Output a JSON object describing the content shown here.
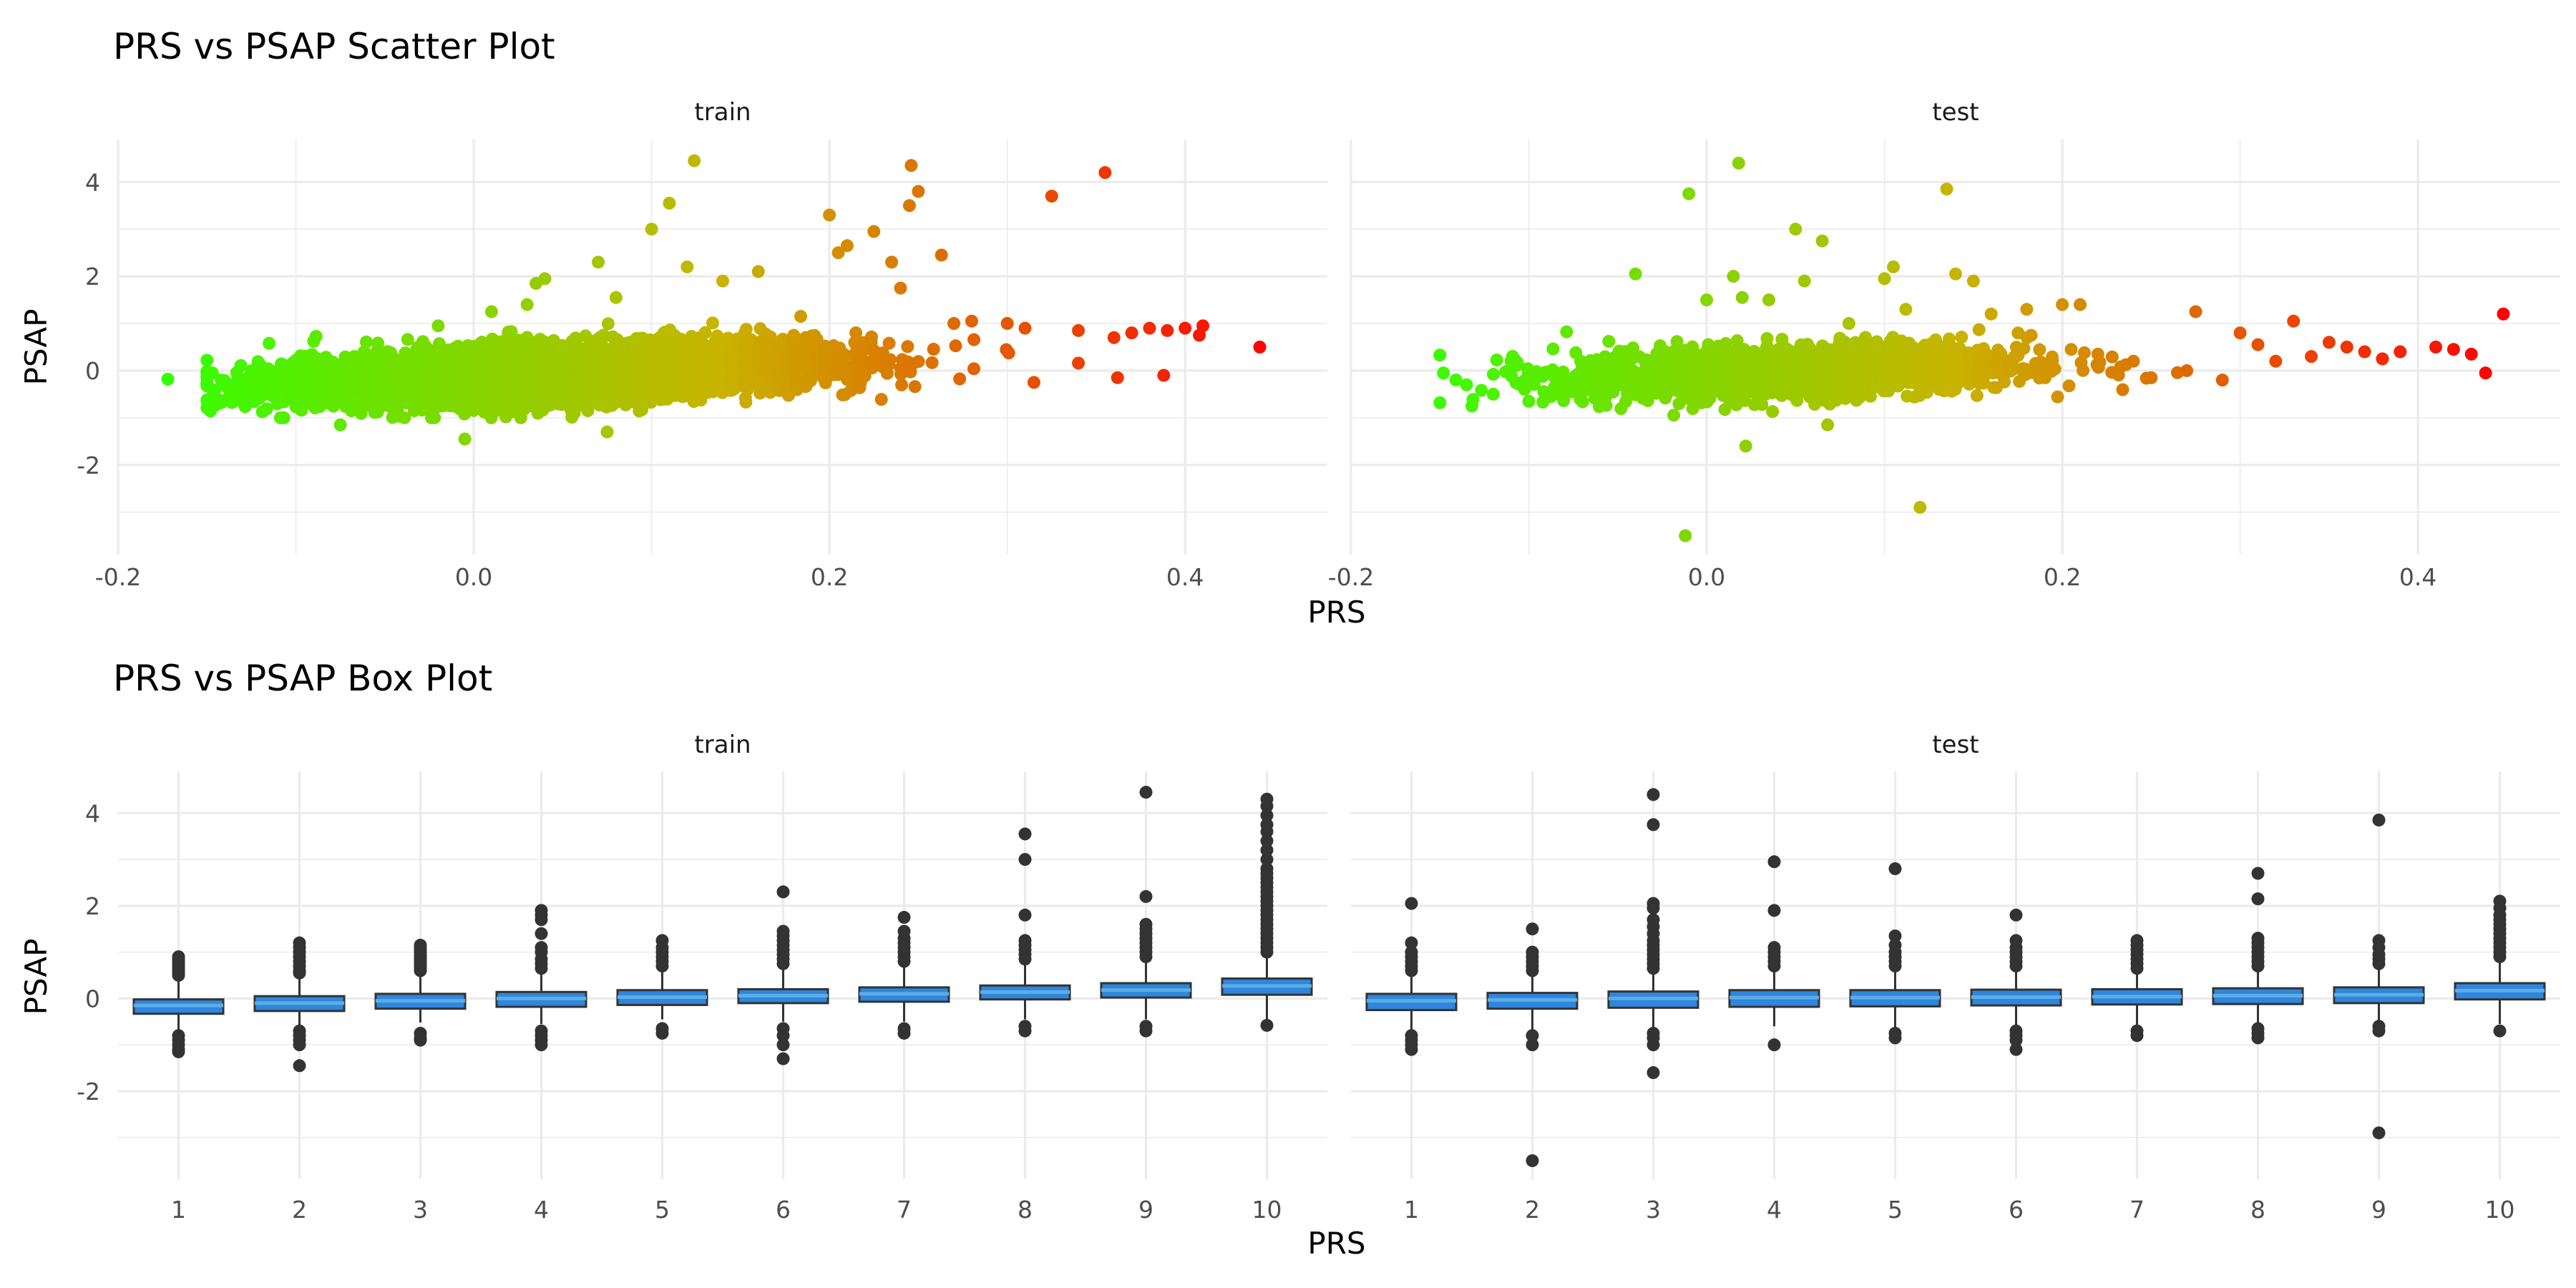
{
  "chart_data": [
    {
      "type": "scatter",
      "title": "PRS vs PSAP Scatter Plot",
      "xlabel": "PRS",
      "ylabel": "PSAP",
      "xlim": [
        -0.2,
        0.48
      ],
      "ylim": [
        -3.9,
        4.9
      ],
      "x_ticks": [
        -0.2,
        0.0,
        0.2,
        0.4
      ],
      "x_tick_labels": [
        "-0.2",
        "0.0",
        "0.2",
        "0.4"
      ],
      "y_ticks": [
        -2,
        0,
        2,
        4
      ],
      "y_tick_labels": [
        "-2",
        "0",
        "2",
        "4"
      ],
      "grid": true,
      "legend": "none",
      "color_scale": {
        "low": "#33ff00",
        "mid": "#c8b400",
        "high": "#ff0000",
        "domain": [
          -0.17,
          0.45
        ]
      },
      "panels": [
        {
          "name": "train",
          "bulk": {
            "count": 6000,
            "x_mean": 0.05,
            "x_sd": 0.07,
            "slope": 1.6,
            "intercept": -0.13,
            "y_sd": 0.28
          },
          "points": [
            [
              -0.172,
              -0.18
            ],
            [
              -0.147,
              -0.05
            ],
            [
              -0.142,
              -0.2
            ],
            [
              -0.135,
              -0.32
            ],
            [
              -0.125,
              0.0
            ],
            [
              -0.118,
              -0.45
            ],
            [
              -0.105,
              -0.6
            ],
            [
              -0.1,
              0.22
            ],
            [
              -0.09,
              0.62
            ],
            [
              -0.075,
              -1.15
            ],
            [
              -0.02,
              0.95
            ],
            [
              -0.005,
              -1.45
            ],
            [
              0.01,
              1.25
            ],
            [
              0.03,
              1.4
            ],
            [
              0.035,
              1.85
            ],
            [
              0.04,
              1.95
            ],
            [
              0.07,
              2.3
            ],
            [
              0.075,
              -1.3
            ],
            [
              0.08,
              1.55
            ],
            [
              0.1,
              3.0
            ],
            [
              0.11,
              3.55
            ],
            [
              0.12,
              2.2
            ],
            [
              0.124,
              4.45
            ],
            [
              0.14,
              1.9
            ],
            [
              0.16,
              2.1
            ],
            [
              0.2,
              3.3
            ],
            [
              0.205,
              2.5
            ],
            [
              0.21,
              2.65
            ],
            [
              0.225,
              2.95
            ],
            [
              0.235,
              2.3
            ],
            [
              0.24,
              1.75
            ],
            [
              0.245,
              3.5
            ],
            [
              0.246,
              4.35
            ],
            [
              0.25,
              3.8
            ],
            [
              0.263,
              2.45
            ],
            [
              0.27,
              1.0
            ],
            [
              0.28,
              1.05
            ],
            [
              0.3,
              1.0
            ],
            [
              0.31,
              0.9
            ],
            [
              0.325,
              3.7
            ],
            [
              0.34,
              0.85
            ],
            [
              0.355,
              4.2
            ],
            [
              0.36,
              0.7
            ],
            [
              0.37,
              0.8
            ],
            [
              0.38,
              0.9
            ],
            [
              0.39,
              0.85
            ],
            [
              0.4,
              0.9
            ],
            [
              0.41,
              0.95
            ],
            [
              0.388,
              -0.1
            ],
            [
              0.408,
              0.75
            ],
            [
              0.362,
              -0.15
            ],
            [
              0.315,
              -0.25
            ],
            [
              0.442,
              0.5
            ]
          ]
        },
        {
          "name": "test",
          "bulk": {
            "count": 1500,
            "x_mean": 0.05,
            "x_sd": 0.065,
            "slope": 1.2,
            "intercept": -0.08,
            "y_sd": 0.28
          },
          "points": [
            [
              -0.148,
              -0.05
            ],
            [
              -0.135,
              -0.3
            ],
            [
              -0.132,
              -0.75
            ],
            [
              -0.12,
              -0.5
            ],
            [
              -0.11,
              0.2
            ],
            [
              -0.1,
              -0.65
            ],
            [
              -0.055,
              0.62
            ],
            [
              -0.04,
              2.05
            ],
            [
              -0.01,
              3.75
            ],
            [
              -0.012,
              -3.5
            ],
            [
              0.0,
              1.5
            ],
            [
              0.015,
              2.0
            ],
            [
              0.018,
              4.4
            ],
            [
              0.02,
              1.55
            ],
            [
              0.022,
              -1.6
            ],
            [
              0.035,
              1.5
            ],
            [
              0.05,
              3.0
            ],
            [
              0.055,
              1.9
            ],
            [
              0.065,
              2.75
            ],
            [
              0.068,
              -1.15
            ],
            [
              0.08,
              1.0
            ],
            [
              0.1,
              1.95
            ],
            [
              0.105,
              2.2
            ],
            [
              0.112,
              1.3
            ],
            [
              0.12,
              -2.9
            ],
            [
              0.135,
              3.85
            ],
            [
              0.14,
              2.05
            ],
            [
              0.15,
              1.9
            ],
            [
              0.16,
              1.2
            ],
            [
              0.18,
              1.3
            ],
            [
              0.2,
              1.4
            ],
            [
              0.21,
              1.4
            ],
            [
              0.22,
              0.35
            ],
            [
              0.24,
              0.2
            ],
            [
              0.25,
              -0.15
            ],
            [
              0.27,
              0.0
            ],
            [
              0.275,
              1.25
            ],
            [
              0.29,
              -0.2
            ],
            [
              0.3,
              0.8
            ],
            [
              0.31,
              0.55
            ],
            [
              0.32,
              0.2
            ],
            [
              0.33,
              1.05
            ],
            [
              0.34,
              0.3
            ],
            [
              0.35,
              0.6
            ],
            [
              0.36,
              0.5
            ],
            [
              0.37,
              0.4
            ],
            [
              0.38,
              0.25
            ],
            [
              0.39,
              0.4
            ],
            [
              0.41,
              0.5
            ],
            [
              0.42,
              0.45
            ],
            [
              0.43,
              0.35
            ],
            [
              0.438,
              -0.05
            ],
            [
              0.448,
              1.2
            ]
          ]
        }
      ]
    },
    {
      "type": "box",
      "title": "PRS vs PSAP Box Plot",
      "xlabel": "PRS",
      "ylabel": "PSAP",
      "categories": [
        "1",
        "2",
        "3",
        "4",
        "5",
        "6",
        "7",
        "8",
        "9",
        "10"
      ],
      "ylim": [
        -3.9,
        4.9
      ],
      "y_ticks": [
        -2,
        0,
        2,
        4
      ],
      "y_tick_labels": [
        "-2",
        "0",
        "2",
        "4"
      ],
      "grid": true,
      "box_fill": "#2e86de",
      "box_median_color": "#5dade2",
      "outline_color": "#333333",
      "panels": [
        {
          "name": "train",
          "boxes": [
            {
              "min": -0.72,
              "q1": -0.33,
              "median": -0.15,
              "q3": -0.02,
              "max": 0.42,
              "outliers": [
                0.5,
                0.55,
                0.6,
                0.65,
                0.7,
                0.75,
                0.8,
                0.85,
                0.9,
                -0.8,
                -0.9,
                -1.0,
                -1.1,
                -1.15
              ]
            },
            {
              "min": -0.62,
              "q1": -0.27,
              "median": -0.1,
              "q3": 0.05,
              "max": 0.5,
              "outliers": [
                0.55,
                0.6,
                0.7,
                0.8,
                0.9,
                1.0,
                1.1,
                1.2,
                -0.7,
                -0.8,
                -0.9,
                -1.0,
                -1.45
              ]
            },
            {
              "min": -0.52,
              "q1": -0.22,
              "median": -0.05,
              "q3": 0.1,
              "max": 0.55,
              "outliers": [
                0.6,
                0.65,
                0.7,
                0.75,
                0.8,
                0.85,
                0.9,
                0.95,
                1.0,
                1.05,
                1.1,
                1.15,
                -0.75,
                -0.85,
                -0.9
              ]
            },
            {
              "min": -0.55,
              "q1": -0.18,
              "median": 0.0,
              "q3": 0.14,
              "max": 0.6,
              "outliers": [
                0.65,
                0.75,
                0.85,
                1.0,
                1.1,
                1.4,
                1.7,
                1.8,
                1.9,
                -0.7,
                -0.8,
                -0.9,
                -1.0
              ]
            },
            {
              "min": -0.45,
              "q1": -0.14,
              "median": 0.03,
              "q3": 0.18,
              "max": 0.65,
              "outliers": [
                0.7,
                0.8,
                0.9,
                1.0,
                1.1,
                1.25,
                -0.65,
                -0.75
              ]
            },
            {
              "min": -0.5,
              "q1": -0.1,
              "median": 0.06,
              "q3": 0.2,
              "max": 0.7,
              "outliers": [
                0.75,
                0.85,
                0.95,
                1.05,
                1.15,
                1.25,
                1.35,
                1.45,
                2.3,
                -0.65,
                -0.8,
                -1.0,
                -1.3
              ]
            },
            {
              "min": -0.5,
              "q1": -0.07,
              "median": 0.1,
              "q3": 0.24,
              "max": 0.75,
              "outliers": [
                0.8,
                0.9,
                1.0,
                1.1,
                1.2,
                1.3,
                1.45,
                1.75,
                -0.65,
                -0.75
              ]
            },
            {
              "min": -0.45,
              "q1": -0.02,
              "median": 0.14,
              "q3": 0.28,
              "max": 0.8,
              "outliers": [
                0.85,
                0.95,
                1.05,
                1.15,
                1.25,
                1.8,
                3.0,
                3.55,
                -0.6,
                -0.7
              ]
            },
            {
              "min": -0.45,
              "q1": 0.02,
              "median": 0.18,
              "q3": 0.33,
              "max": 0.85,
              "outliers": [
                0.9,
                1.0,
                1.1,
                1.2,
                1.3,
                1.4,
                1.5,
                1.6,
                2.2,
                4.45,
                -0.6,
                -0.7
              ]
            },
            {
              "min": -0.55,
              "q1": 0.08,
              "median": 0.27,
              "q3": 0.43,
              "max": 0.95,
              "outliers": [
                1.0,
                1.1,
                1.2,
                1.3,
                1.4,
                1.5,
                1.6,
                1.7,
                1.8,
                1.9,
                2.0,
                2.1,
                2.2,
                2.3,
                2.4,
                2.5,
                2.6,
                2.7,
                2.8,
                3.0,
                3.2,
                3.4,
                3.6,
                3.75,
                3.95,
                4.15,
                4.3,
                -0.58
              ]
            }
          ]
        },
        {
          "name": "test",
          "boxes": [
            {
              "min": -0.7,
              "q1": -0.25,
              "median": -0.05,
              "q3": 0.1,
              "max": 0.55,
              "outliers": [
                0.6,
                0.7,
                0.8,
                0.9,
                1.0,
                1.2,
                2.05,
                -0.8,
                -0.9,
                -1.0,
                -1.1
              ]
            },
            {
              "min": -0.7,
              "q1": -0.22,
              "median": -0.03,
              "q3": 0.12,
              "max": 0.55,
              "outliers": [
                0.6,
                0.7,
                0.8,
                0.9,
                1.0,
                1.5,
                -0.8,
                -1.0,
                -3.5
              ]
            },
            {
              "min": -0.7,
              "q1": -0.2,
              "median": 0.0,
              "q3": 0.15,
              "max": 0.6,
              "outliers": [
                0.65,
                0.75,
                0.85,
                0.95,
                1.05,
                1.15,
                1.25,
                1.4,
                1.55,
                1.7,
                1.95,
                2.05,
                3.75,
                4.4,
                -0.75,
                -0.85,
                -1.0,
                -1.6
              ]
            },
            {
              "min": -0.6,
              "q1": -0.18,
              "median": 0.02,
              "q3": 0.18,
              "max": 0.6,
              "outliers": [
                0.7,
                0.8,
                0.9,
                1.0,
                1.1,
                1.9,
                2.95,
                -1.0
              ]
            },
            {
              "min": -0.65,
              "q1": -0.17,
              "median": 0.02,
              "q3": 0.18,
              "max": 0.6,
              "outliers": [
                0.7,
                0.8,
                0.9,
                1.0,
                1.15,
                1.35,
                2.8,
                -0.75,
                -0.85
              ]
            },
            {
              "min": -0.65,
              "q1": -0.15,
              "median": 0.03,
              "q3": 0.19,
              "max": 0.6,
              "outliers": [
                0.7,
                0.8,
                0.9,
                1.0,
                1.1,
                1.25,
                1.8,
                -0.7,
                -0.8,
                -0.9,
                -1.1
              ]
            },
            {
              "min": -0.6,
              "q1": -0.13,
              "median": 0.04,
              "q3": 0.2,
              "max": 0.6,
              "outliers": [
                0.65,
                0.75,
                0.85,
                0.95,
                1.05,
                1.15,
                1.25,
                -0.7,
                -0.8
              ]
            },
            {
              "min": -0.6,
              "q1": -0.12,
              "median": 0.06,
              "q3": 0.22,
              "max": 0.65,
              "outliers": [
                0.7,
                0.8,
                0.9,
                1.0,
                1.1,
                1.2,
                1.3,
                2.15,
                2.7,
                -0.65,
                -0.75,
                -0.85
              ]
            },
            {
              "min": -0.55,
              "q1": -0.1,
              "median": 0.08,
              "q3": 0.24,
              "max": 0.7,
              "outliers": [
                0.75,
                0.85,
                0.95,
                1.1,
                1.25,
                3.85,
                -0.6,
                -0.7,
                -2.9
              ]
            },
            {
              "min": -0.55,
              "q1": -0.02,
              "median": 0.17,
              "q3": 0.33,
              "max": 0.85,
              "outliers": [
                0.9,
                1.0,
                1.1,
                1.2,
                1.3,
                1.4,
                1.5,
                1.6,
                1.7,
                1.8,
                1.95,
                2.1,
                -0.7
              ]
            }
          ]
        }
      ]
    }
  ]
}
